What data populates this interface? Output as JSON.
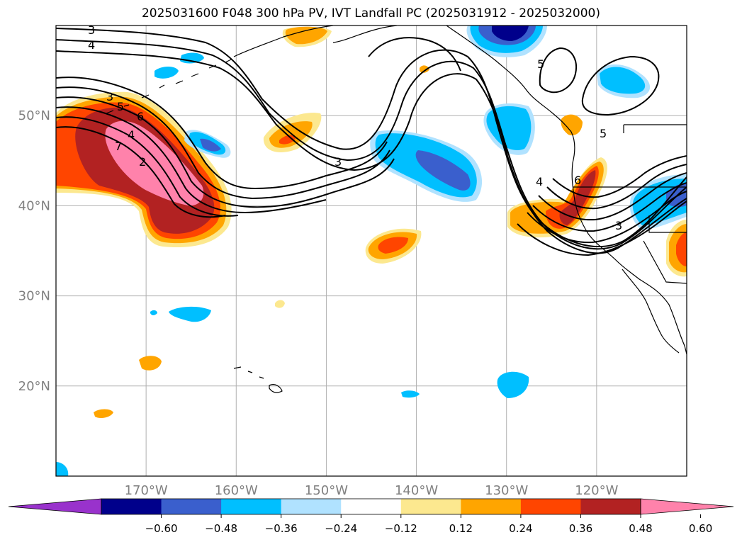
{
  "title": "2025031600 F048 300 hPa PV, IVT Landfall PC (2025031912 - 2025032000)",
  "map": {
    "lon_range": [
      -180,
      -110
    ],
    "lat_range": [
      10,
      60
    ],
    "lat_ticks": [
      {
        "lat": 20,
        "label": "20°N"
      },
      {
        "lat": 30,
        "label": "30°N"
      },
      {
        "lat": 40,
        "label": "40°N"
      },
      {
        "lat": 50,
        "label": "50°N"
      }
    ],
    "lon_ticks": [
      {
        "lon": -170,
        "label": "170°W"
      },
      {
        "lon": -160,
        "label": "160°W"
      },
      {
        "lon": -150,
        "label": "150°W"
      },
      {
        "lon": -140,
        "label": "140°W"
      },
      {
        "lon": -130,
        "label": "130°W"
      },
      {
        "lon": -120,
        "label": "120°W"
      }
    ],
    "grid": true,
    "pv_contour_labels": [
      "3",
      "4",
      "5",
      "6",
      "7",
      "2",
      "3",
      "4",
      "3",
      "5",
      "6",
      "5",
      "4",
      "3"
    ]
  },
  "colorbar": {
    "ticks": [
      "−0.60",
      "−0.48",
      "−0.36",
      "−0.24",
      "−0.12",
      "0.12",
      "0.24",
      "0.36",
      "0.48",
      "0.60"
    ],
    "colors": [
      "#9932cc",
      "#00008b",
      "#3a5fcd",
      "#00bfff",
      "#b0e2ff",
      "#ffffff",
      "#fce88f",
      "#ffa500",
      "#ff4500",
      "#b22222",
      "#ff82ab"
    ],
    "extend": "both"
  }
}
